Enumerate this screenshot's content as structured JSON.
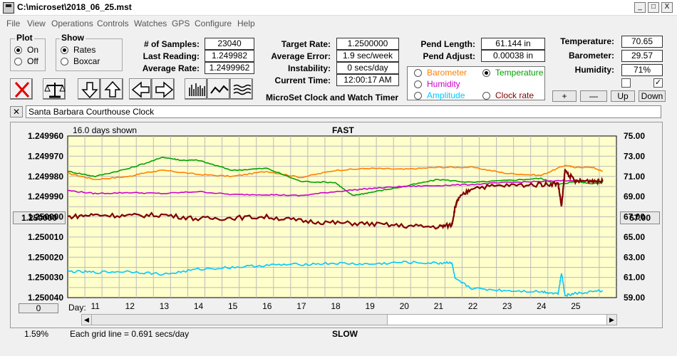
{
  "window": {
    "title": "C:\\microset\\2018_06_25.mst"
  },
  "menu": [
    "File",
    "View",
    "Operations",
    "Controls",
    "Watches",
    "GPS",
    "Configure",
    "Help"
  ],
  "plot_group": {
    "title": "Plot",
    "on": "On",
    "off": "Off",
    "selected": "On"
  },
  "show_group": {
    "title": "Show",
    "rates": "Rates",
    "boxcar": "Boxcar",
    "selected": "Rates"
  },
  "stats": {
    "samples_label": "# of Samples:",
    "samples": "23040",
    "last_label": "Last Reading:",
    "last": "1.249982",
    "avg_label": "Average Rate:",
    "avg": "1.2499962",
    "target_label": "Target Rate:",
    "target": "1.2500000",
    "err_label": "Average Error:",
    "err": "1.9 sec/week",
    "inst_label": "Instability:",
    "inst": "0 secs/day",
    "time_label": "Current Time:",
    "time": "12:00:17 AM",
    "pendlen_label": "Pend Length:",
    "pendlen": "61.144 in",
    "pendadj_label": "Pend Adjust:",
    "pendadj": "0.00038 in",
    "temp_label": "Temperature:",
    "temp": "70.65",
    "baro_label": "Barometer:",
    "baro": "29.57",
    "hum_label": "Humidity:",
    "hum": "71%"
  },
  "app_caption": "MicroSet Clock and Watch Timer",
  "series_select": {
    "barometer": "Barometer",
    "temperature": "Temperature",
    "humidity": "Humidity",
    "amplitude": "Amplitude",
    "clockrate": "Clock rate",
    "selected": "Temperature",
    "colors": {
      "barometer": "#ff8000",
      "temperature": "#00a000",
      "humidity": "#cc00cc",
      "amplitude": "#00c8ff",
      "clockrate": "#800000"
    }
  },
  "adj_buttons": {
    "plus": "+",
    "minus": "—",
    "up": "Up",
    "down": "Down"
  },
  "watch_name": "Santa Barbara Courthouse Clock",
  "chart_labels": {
    "days_shown": "16.0 days shown",
    "fast": "FAST",
    "slow": "SLOW",
    "day_label": "Day:",
    "grid_note": "Each grid line = 0.691 secs/day",
    "left_button": "1.250000",
    "right_button": "67.00",
    "zero_button": "0",
    "percent": "1.59%"
  },
  "chart_data": {
    "type": "line",
    "x_label": "Day:",
    "x_ticks": [
      "11",
      "12",
      "13",
      "14",
      "15",
      "16",
      "17",
      "18",
      "19",
      "20",
      "21",
      "22",
      "23",
      "24",
      "25"
    ],
    "xlim": [
      10.2,
      26.2
    ],
    "left_axis": {
      "ticks": [
        "1.249960",
        "1.249970",
        "1.249980",
        "1.249990",
        "1.250000",
        "1.250010",
        "1.250020",
        "1.250030",
        "1.250040"
      ],
      "range": [
        1.24996,
        1.25004
      ],
      "inverted": true
    },
    "right_axis": {
      "ticks": [
        "75.00",
        "73.00",
        "71.00",
        "69.00",
        "67.00",
        "65.00",
        "63.00",
        "61.00",
        "59.00"
      ],
      "range": [
        59,
        75
      ]
    },
    "grid": true,
    "background": "#ffffcc",
    "series": [
      {
        "name": "Barometer",
        "color": "#ff8000",
        "x": [
          10.2,
          11,
          12,
          12.5,
          13,
          14,
          15,
          16,
          17,
          18,
          19,
          20,
          21,
          22,
          23,
          24,
          24.7,
          25,
          25.5,
          25.8
        ],
        "y": [
          71.3,
          70.7,
          71.0,
          71.4,
          71.6,
          71.2,
          71.0,
          71.5,
          70.9,
          71.6,
          71.8,
          71.7,
          71.9,
          71.9,
          71.3,
          71.1,
          72.1,
          71.9,
          71.9,
          71.5
        ]
      },
      {
        "name": "Temperature",
        "color": "#00a000",
        "x": [
          10.2,
          11,
          12,
          13,
          13.5,
          14,
          15,
          16,
          17,
          18,
          18.5,
          19,
          20,
          21,
          22,
          23,
          24,
          24.5,
          25,
          25.5,
          25.8
        ],
        "y": [
          71.5,
          71.0,
          71.8,
          72.9,
          72.6,
          72.6,
          71.6,
          71.8,
          70.5,
          70.4,
          69.1,
          69.4,
          70.0,
          70.7,
          70.4,
          70.6,
          70.8,
          70.2,
          70.5,
          70.3,
          70.4
        ]
      },
      {
        "name": "Humidity",
        "color": "#cc00cc",
        "x": [
          10.2,
          11,
          12,
          13,
          14,
          15,
          16,
          17,
          18,
          19,
          20,
          21,
          22,
          23,
          24,
          25,
          25.8
        ],
        "y": [
          69.6,
          69.3,
          69.4,
          69.3,
          69.5,
          69.2,
          69.2,
          69.1,
          69.5,
          69.8,
          70.0,
          70.1,
          70.2,
          70.4,
          70.5,
          70.6,
          70.5
        ]
      },
      {
        "name": "Clock rate",
        "color": "#800000",
        "x": [
          10.2,
          11,
          12,
          13,
          14,
          15,
          16,
          17,
          18,
          19,
          20,
          21,
          21.4,
          21.5,
          21.6,
          22,
          23,
          24,
          24.5,
          24.6,
          24.7,
          25,
          25.5,
          25.8
        ],
        "y": [
          67.0,
          67.2,
          67.1,
          67.2,
          66.8,
          66.9,
          67.0,
          66.6,
          66.4,
          66.3,
          66.1,
          66.0,
          66.2,
          68.0,
          68.8,
          69.9,
          70.1,
          70.2,
          70.3,
          68.0,
          71.6,
          70.5,
          70.6,
          70.5
        ]
      },
      {
        "name": "Amplitude",
        "color": "#00c8ff",
        "x": [
          10.2,
          11,
          12,
          13,
          14,
          15,
          16,
          17,
          18,
          19,
          20,
          21,
          21.4,
          21.5,
          22,
          23,
          24,
          24.5,
          24.6,
          24.7,
          25,
          25.8
        ],
        "y": [
          61.6,
          61.5,
          61.6,
          61.3,
          61.8,
          62.0,
          62.2,
          62.3,
          62.4,
          62.3,
          62.5,
          62.4,
          62.5,
          60.8,
          59.9,
          59.7,
          59.6,
          59.4,
          61.5,
          59.2,
          59.4,
          59.7
        ]
      }
    ]
  }
}
